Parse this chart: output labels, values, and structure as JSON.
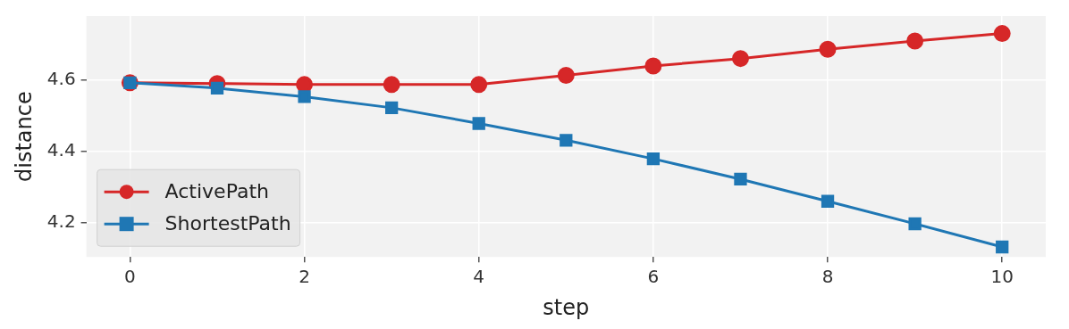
{
  "chart_data": {
    "type": "line",
    "xlabel": "step",
    "ylabel": "distance",
    "x": [
      0,
      1,
      2,
      3,
      4,
      5,
      6,
      7,
      8,
      9,
      10
    ],
    "series": [
      {
        "name": "ActivePath",
        "color": "#d62728",
        "marker": "circle",
        "values": [
          4.592,
          4.59,
          4.587,
          4.587,
          4.587,
          4.613,
          4.639,
          4.66,
          4.686,
          4.709,
          4.73
        ]
      },
      {
        "name": "ShortestPath",
        "color": "#1f77b4",
        "marker": "square",
        "values": [
          4.592,
          4.577,
          4.553,
          4.522,
          4.478,
          4.431,
          4.379,
          4.322,
          4.26,
          4.197,
          4.132
        ]
      }
    ],
    "xlim": [
      -0.5,
      10.5
    ],
    "xticks": [
      0,
      2,
      4,
      6,
      8,
      10
    ],
    "ylim": [
      4.104,
      4.779
    ],
    "yticks": [
      4.2,
      4.4,
      4.6
    ],
    "grid": true,
    "legend": "bottom left",
    "line_style": "solid"
  }
}
